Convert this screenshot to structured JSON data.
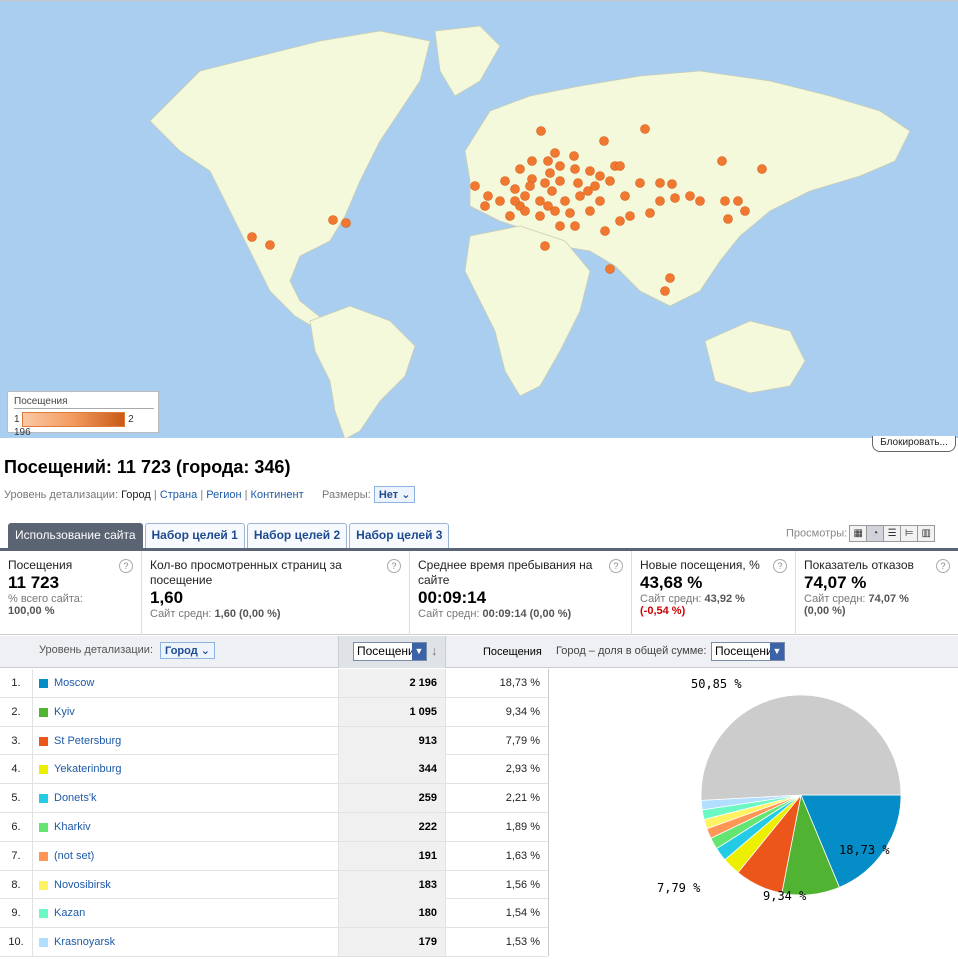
{
  "map": {
    "legend_title": "Посещения",
    "legend_min": "1",
    "legend_max": "2 196"
  },
  "block_button": "Блокировать...",
  "title": "Посещений: 11 723 (города: 346)",
  "detail": {
    "label": "Уровень детализации:",
    "current": "Город",
    "sep": "|",
    "links": [
      "Страна",
      "Регион",
      "Континент"
    ],
    "sizes_label": "Размеры:",
    "sizes_value": "Нет"
  },
  "tabs": [
    "Использование сайта",
    "Набор целей 1",
    "Набор целей 2",
    "Набор целей 3"
  ],
  "views_label": "Просмотры:",
  "metrics": [
    {
      "title": "Посещения",
      "value": "11 723",
      "sub1": "% всего сайта:",
      "sub2": "100,00 %"
    },
    {
      "title": "Кол-во просмотренных страниц за посещение",
      "value": "1,60",
      "sub1": "Сайт средн:",
      "sub2": "1,60 (0,00 %)"
    },
    {
      "title": "Среднее время пребывания на сайте",
      "value": "00:09:14",
      "sub1": "Сайт средн:",
      "sub2": "00:09:14 (0,00 %)"
    },
    {
      "title": "Новые посещения, %",
      "value": "43,68 %",
      "sub1": "Сайт средн:",
      "sub2": "43,92 %",
      "sub3": "(-0,54 %)"
    },
    {
      "title": "Показатель отказов",
      "value": "74,07 %",
      "sub1": "Сайт средн:",
      "sub2": "74,07 %",
      "sub3": "(0,00 %)"
    }
  ],
  "table_head": {
    "level_label": "Уровень детализации:",
    "level_value": "Город",
    "col_select": "Посещения",
    "col2": "Посещения",
    "pie_label": "Город – доля в общей сумме:",
    "pie_select": "Посещения"
  },
  "rows": [
    {
      "n": "1.",
      "name": "Moscow",
      "visits": "2 196",
      "pct": "18,73 %",
      "color": "#058dc7"
    },
    {
      "n": "2.",
      "name": "Kyiv",
      "visits": "1 095",
      "pct": "9,34 %",
      "color": "#50b432"
    },
    {
      "n": "3.",
      "name": "St Petersburg",
      "visits": "913",
      "pct": "7,79 %",
      "color": "#ed561b"
    },
    {
      "n": "4.",
      "name": "Yekaterinburg",
      "visits": "344",
      "pct": "2,93 %",
      "color": "#edef00"
    },
    {
      "n": "5.",
      "name": "Donets'k",
      "visits": "259",
      "pct": "2,21 %",
      "color": "#24cbe5"
    },
    {
      "n": "6.",
      "name": "Kharkiv",
      "visits": "222",
      "pct": "1,89 %",
      "color": "#64e572"
    },
    {
      "n": "7.",
      "name": "(not set)",
      "visits": "191",
      "pct": "1,63 %",
      "color": "#ff9655"
    },
    {
      "n": "8.",
      "name": "Novosibirsk",
      "visits": "183",
      "pct": "1,56 %",
      "color": "#fff263"
    },
    {
      "n": "9.",
      "name": "Kazan",
      "visits": "180",
      "pct": "1,54 %",
      "color": "#6af9c4"
    },
    {
      "n": "10.",
      "name": "Krasnoyarsk",
      "visits": "179",
      "pct": "1,53 %",
      "color": "#b2deff"
    }
  ],
  "pie_labels": {
    "other": "50,85  %",
    "moscow": "18,73  %",
    "kyiv": "9,34  %",
    "spb": "7,79  %"
  },
  "pie_other_color": "#cccccc"
}
